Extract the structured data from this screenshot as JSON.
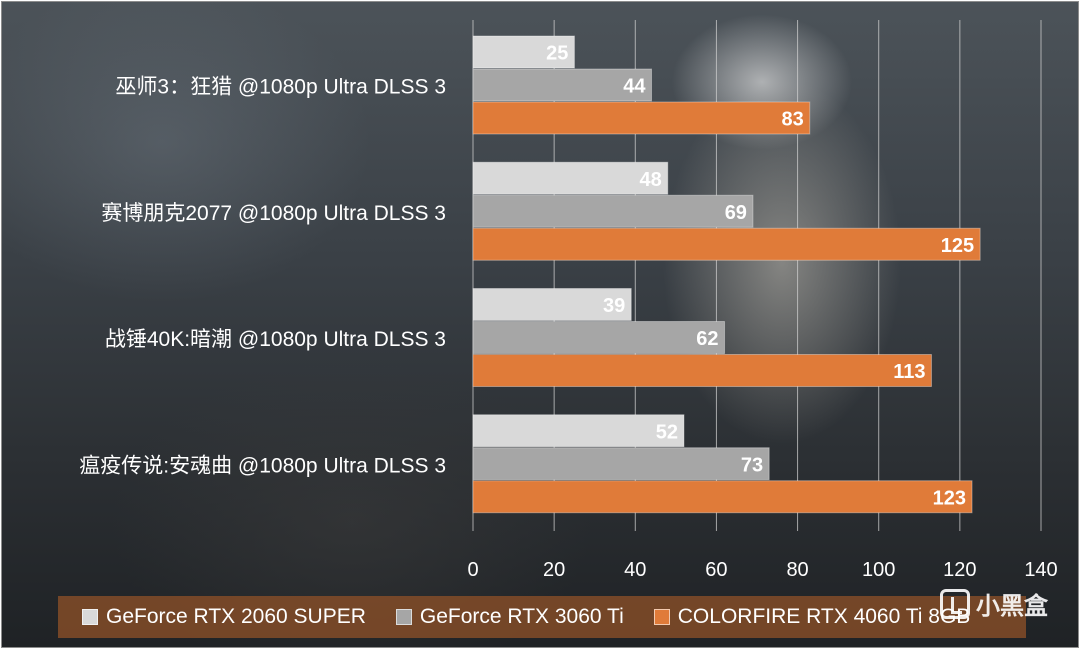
{
  "chart_data": {
    "type": "bar",
    "orientation": "horizontal",
    "title": "",
    "xlabel": "",
    "ylabel": "",
    "xlim": [
      0,
      140
    ],
    "x_ticks": [
      0,
      20,
      40,
      60,
      80,
      100,
      120,
      140
    ],
    "grid": true,
    "legend_position": "bottom",
    "categories": [
      "巫师3：狂猎 @1080p Ultra DLSS 3",
      "赛博朋克2077 @1080p Ultra DLSS 3",
      "战锤40K:暗潮 @1080p Ultra DLSS 3",
      "瘟疫传说:安魂曲 @1080p Ultra DLSS 3"
    ],
    "series": [
      {
        "name": "GeForce RTX 2060 SUPER",
        "color": "#d9d9d9",
        "values": [
          25,
          48,
          39,
          52
        ]
      },
      {
        "name": "GeForce RTX 3060 Ti",
        "color": "#a6a6a6",
        "values": [
          44,
          69,
          62,
          73
        ]
      },
      {
        "name": "COLORFIRE RTX 4060 Ti 8GB",
        "color": "#e07b39",
        "values": [
          83,
          125,
          113,
          123
        ]
      }
    ]
  },
  "watermark": {
    "text": "小黑盒",
    "icon": "heybox-logo-icon"
  }
}
